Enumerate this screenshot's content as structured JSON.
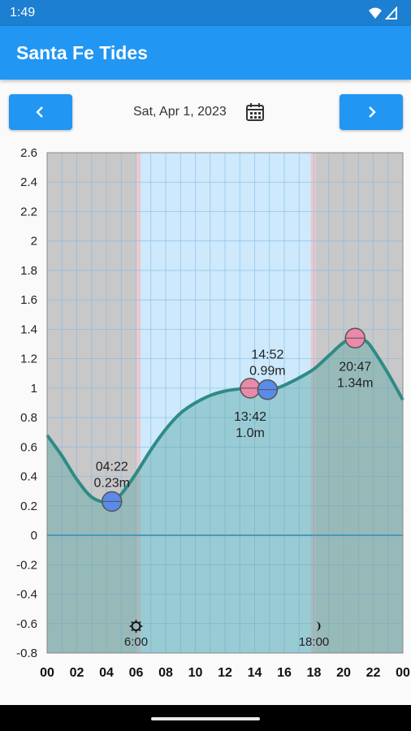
{
  "status": {
    "time": "1:49",
    "icons": [
      "wifi-icon",
      "signal-icon"
    ]
  },
  "app": {
    "title": "Santa Fe Tides",
    "accent": "#2196f3"
  },
  "date_nav": {
    "date": "Sat, Apr 1, 2023",
    "prev_icon": "chevron-left-icon",
    "next_icon": "chevron-right-icon",
    "calendar_icon": "calendar-icon"
  },
  "chart_data": {
    "type": "area",
    "xlim": [
      0,
      24
    ],
    "ylim": [
      -0.8,
      2.6
    ],
    "x_tick_labels": [
      "00",
      "02",
      "04",
      "06",
      "08",
      "10",
      "12",
      "14",
      "16",
      "18",
      "20",
      "22",
      "00"
    ],
    "y_tick_labels": [
      "2.6",
      "2.4",
      "2.2",
      "2",
      "1.8",
      "1.6",
      "1.4",
      "1.2",
      "1",
      "0.8",
      "0.6",
      "0.4",
      "0.2",
      "0",
      "-0.2",
      "-0.4",
      "-0.6",
      "-0.8"
    ],
    "grid": true,
    "line_color": "#2e8b85",
    "fill_color": "#5aa7a3",
    "night_color": "#c8c8c8",
    "day_color": "#cde9fb",
    "extremes": [
      {
        "time": "04:22",
        "height": "0.23m",
        "x": 4.37,
        "y": 0.23,
        "kind": "low",
        "label_pos": "above"
      },
      {
        "time": "13:42",
        "height": "1.0m",
        "x": 13.7,
        "y": 1.0,
        "kind": "high",
        "label_pos": "below"
      },
      {
        "time": "14:52",
        "height": "0.99m",
        "x": 14.87,
        "y": 0.99,
        "kind": "low",
        "label_pos": "above"
      },
      {
        "time": "20:47",
        "height": "1.34m",
        "x": 20.78,
        "y": 1.34,
        "kind": "high",
        "label_pos": "below"
      }
    ],
    "curve": [
      [
        0,
        0.68
      ],
      [
        1,
        0.54
      ],
      [
        2,
        0.38
      ],
      [
        3,
        0.26
      ],
      [
        4,
        0.22
      ],
      [
        4.37,
        0.23
      ],
      [
        5,
        0.28
      ],
      [
        6,
        0.42
      ],
      [
        7,
        0.58
      ],
      [
        8,
        0.72
      ],
      [
        9,
        0.83
      ],
      [
        10,
        0.9
      ],
      [
        11,
        0.95
      ],
      [
        12,
        0.98
      ],
      [
        13,
        0.995
      ],
      [
        13.7,
        1.0
      ],
      [
        14.3,
        0.99
      ],
      [
        14.87,
        0.99
      ],
      [
        15.5,
        1.0
      ],
      [
        16,
        1.02
      ],
      [
        17,
        1.07
      ],
      [
        18,
        1.13
      ],
      [
        19,
        1.22
      ],
      [
        20,
        1.31
      ],
      [
        20.78,
        1.34
      ],
      [
        21.5,
        1.32
      ],
      [
        22,
        1.26
      ],
      [
        23,
        1.1
      ],
      [
        24,
        0.92
      ]
    ],
    "sunrise": {
      "time": "6:00",
      "x": 6.0,
      "icon": "sun-icon"
    },
    "sunset": {
      "time": "18:00",
      "x": 18.0,
      "icon": "moon-icon"
    },
    "day_start": 6.3,
    "day_end": 17.8
  }
}
